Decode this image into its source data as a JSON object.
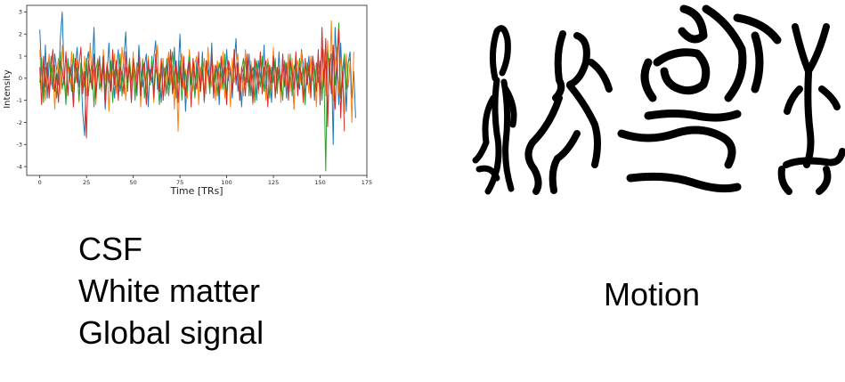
{
  "chart_data": {
    "type": "line",
    "xlabel": "Time [TRs]",
    "ylabel": "Intensity",
    "xlim": [
      -7,
      175
    ],
    "ylim": [
      -4.4,
      3.3
    ],
    "xticks": [
      "0",
      "25",
      "50",
      "75",
      "100",
      "125",
      "150",
      "175"
    ],
    "yticks": [
      "-4",
      "-3",
      "-2",
      "-1",
      "0",
      "1",
      "2",
      "3"
    ],
    "grid": false,
    "legend": "none",
    "series": [
      {
        "color": "#1f77b4",
        "values": [
          2.2,
          0.3,
          -0.6,
          1.5,
          -0.9,
          0.8,
          0.1,
          -0.5,
          1.1,
          0.4,
          -0.3,
          1.8,
          3.0,
          0.2,
          -0.8,
          0.9,
          -0.1,
          0.6,
          -1.2,
          0.5,
          1.4,
          -0.4,
          0.3,
          -1.6,
          -2.6,
          0.7,
          1.2,
          -0.2,
          0.4,
          2.3,
          -0.7,
          0.1,
          1.0,
          -0.5,
          0.6,
          -1.4,
          0.2,
          1.6,
          -0.3,
          0.8,
          -0.9,
          0.4,
          1.3,
          -0.6,
          0.0,
          0.9,
          2.1,
          -0.2,
          0.5,
          -1.0,
          0.7,
          0.2,
          -0.8,
          1.5,
          0.3,
          -0.4,
          0.6,
          1.1,
          -1.3,
          0.4,
          -0.2,
          0.9,
          1.7,
          -0.5,
          0.2,
          -1.1,
          0.6,
          0.3,
          -0.7,
          1.0,
          0.5,
          -0.3,
          1.4,
          -0.9,
          0.2,
          2.0,
          -0.4,
          0.7,
          -1.5,
          0.3,
          1.1,
          -0.2,
          0.5,
          -0.8,
          0.9,
          0.1,
          -0.6,
          1.2,
          -1.0,
          0.4,
          0.8,
          -0.3,
          1.6,
          -0.7,
          0.2,
          0.6,
          -1.2,
          0.9,
          0.3,
          -0.5,
          1.3,
          -0.1,
          0.4,
          -0.9,
          0.7,
          1.8,
          -0.6,
          0.2,
          -1.3,
          0.5,
          0.9,
          -0.2,
          1.1,
          -0.8,
          0.3,
          0.6,
          -1.0,
          0.8,
          0.1,
          -0.4,
          1.5,
          -0.7,
          0.4,
          0.2,
          -1.1,
          0.9,
          0.5,
          -0.3,
          1.2,
          -0.6,
          0.3,
          0.7,
          -0.9,
          1.0,
          -0.2,
          0.4,
          -1.4,
          0.8,
          0.1,
          -0.5,
          1.3,
          0.6,
          -0.8,
          0.2,
          1.0,
          -0.4,
          0.5,
          -1.0,
          0.7,
          0.3,
          -0.6,
          1.4,
          -0.2,
          0.8,
          -1.7,
          0.4,
          1.1,
          -3.0,
          2.3,
          0.5,
          -1.2,
          1.6,
          -0.4,
          0.9,
          -1.5,
          0.7,
          1.2,
          -0.9,
          0.3,
          -1.8
        ]
      },
      {
        "color": "#ff7f0e",
        "values": [
          1.3,
          -0.5,
          0.8,
          -1.0,
          0.4,
          1.1,
          -0.3,
          0.6,
          -1.4,
          0.2,
          0.9,
          -0.7,
          1.5,
          0.1,
          -0.9,
          0.7,
          -0.2,
          1.2,
          -0.6,
          0.3,
          0.8,
          -1.1,
          0.5,
          -0.4,
          1.0,
          -0.8,
          0.2,
          1.6,
          -0.5,
          0.4,
          -1.2,
          0.9,
          0.3,
          -0.6,
          1.3,
          -0.1,
          0.7,
          -1.5,
          0.5,
          0.1,
          1.1,
          -0.7,
          0.4,
          -0.3,
          1.4,
          0.6,
          -1.0,
          0.2,
          0.8,
          -0.4,
          1.2,
          -0.9,
          0.3,
          0.6,
          -1.3,
          0.9,
          0.1,
          -0.5,
          1.0,
          -0.2,
          0.7,
          -1.1,
          0.4,
          1.5,
          -0.6,
          0.2,
          0.9,
          -0.8,
          0.5,
          1.2,
          -0.3,
          0.6,
          -1.4,
          0.8,
          -2.4,
          0.3,
          1.1,
          -0.5,
          0.4,
          -0.9,
          1.3,
          0.2,
          -0.6,
          0.7,
          1.0,
          -1.2,
          0.5,
          -0.1,
          0.9,
          -0.7,
          1.4,
          0.3,
          -0.4,
          0.6,
          -1.0,
          0.8,
          0.2,
          -0.5,
          1.2,
          -0.9,
          0.4,
          0.7,
          -1.3,
          0.9,
          -0.2,
          0.5,
          1.1,
          -0.6,
          0.3,
          -0.8,
          1.3,
          0.1,
          -0.4,
          0.8,
          -1.2,
          0.6,
          0.4,
          -0.7,
          1.0,
          -0.3,
          0.5,
          -1.0,
          0.9,
          0.2,
          -0.5,
          1.4,
          -0.8,
          0.3,
          0.6,
          -1.1,
          0.7,
          0.1,
          -0.4,
          1.1,
          -0.6,
          0.9,
          -1.4,
          0.4,
          0.8,
          -0.2,
          1.2,
          -0.9,
          0.5,
          0.3,
          -0.7,
          1.0,
          -0.1,
          0.6,
          -1.3,
          0.8,
          0.2,
          -0.5,
          1.3,
          -0.8,
          1.7,
          -0.3,
          2.6,
          -1.0,
          0.6,
          1.4,
          -0.7,
          0.9,
          0.2,
          -1.6,
          1.1,
          -0.4,
          0.7,
          -2.0,
          1.2
        ]
      },
      {
        "color": "#2ca02c",
        "values": [
          -0.2,
          0.9,
          -1.1,
          0.5,
          0.2,
          -0.7,
          1.0,
          -0.3,
          0.6,
          -0.9,
          0.4,
          1.2,
          -0.5,
          0.1,
          -1.2,
          0.8,
          0.3,
          -0.6,
          1.1,
          -0.2,
          0.5,
          -1.0,
          0.7,
          0.2,
          -0.4,
          0.9,
          -0.8,
          0.3,
          0.6,
          -1.3,
          0.4,
          0.8,
          -0.5,
          0.1,
          1.0,
          -0.7,
          0.5,
          -0.2,
          0.8,
          -1.1,
          0.3,
          0.6,
          -0.4,
          1.1,
          -0.8,
          0.2,
          0.5,
          -0.6,
          0.9,
          -0.1,
          0.4,
          -1.0,
          0.7,
          0.3,
          -0.5,
          0.8,
          -0.9,
          0.2,
          0.6,
          -0.3,
          1.0,
          -0.7,
          0.4,
          0.1,
          -1.2,
          0.7,
          0.5,
          -0.4,
          0.9,
          -0.8,
          0.3,
          1.2,
          -0.5,
          0.6,
          -0.2,
          0.8,
          -1.0,
          0.4,
          0.2,
          -0.6,
          1.0,
          -0.3,
          0.7,
          -0.9,
          0.5,
          0.1,
          -0.4,
          0.9,
          -1.1,
          0.6,
          0.3,
          -0.7,
          1.0,
          -0.2,
          0.4,
          -0.8,
          0.7,
          0.2,
          -0.5,
          1.1,
          -0.9,
          0.5,
          0.3,
          -0.6,
          0.8,
          -0.1,
          0.6,
          -1.0,
          0.4,
          0.9,
          -0.3,
          0.7,
          -0.8,
          0.2,
          0.5,
          -1.1,
          0.8,
          0.1,
          -0.4,
          1.0,
          -0.6,
          0.3,
          0.7,
          -0.9,
          0.5,
          -0.2,
          0.9,
          -0.7,
          0.4,
          0.1,
          -1.0,
          0.8,
          0.3,
          -0.5,
          1.1,
          -0.8,
          0.6,
          0.2,
          -0.6,
          0.9,
          -0.3,
          0.5,
          -1.2,
          0.7,
          0.1,
          -0.4,
          1.0,
          -0.7,
          0.6,
          -0.2,
          0.8,
          -1.0,
          0.4,
          -4.2,
          1.2,
          0.5,
          -0.6,
          1.5,
          -0.3,
          0.8,
          2.5,
          -0.9,
          0.4,
          1.1,
          -0.5,
          0.7,
          0.9
        ]
      },
      {
        "color": "#d62728",
        "values": [
          0.5,
          -1.2,
          1.0,
          -0.4,
          0.7,
          -0.9,
          0.3,
          1.3,
          -0.6,
          0.2,
          -1.1,
          0.8,
          0.4,
          -0.3,
          1.2,
          -0.8,
          0.5,
          0.1,
          -1.3,
          0.9,
          -0.2,
          0.6,
          1.4,
          -0.7,
          0.3,
          -2.7,
          0.8,
          0.2,
          -0.5,
          1.1,
          -0.9,
          0.4,
          0.7,
          -0.4,
          1.0,
          -1.2,
          0.6,
          0.1,
          -0.6,
          1.3,
          -0.3,
          0.8,
          -1.0,
          0.5,
          0.2,
          -0.7,
          1.2,
          -0.2,
          0.6,
          -1.1,
          0.9,
          0.3,
          -0.5,
          1.0,
          -0.8,
          0.4,
          0.7,
          -1.2,
          0.8,
          -0.1,
          0.5,
          -0.9,
          1.1,
          0.2,
          -0.6,
          0.9,
          -1.0,
          0.4,
          0.6,
          -0.3,
          1.3,
          -0.7,
          0.2,
          0.8,
          -1.1,
          0.5,
          -0.4,
          1.0,
          -0.8,
          0.3,
          0.7,
          -1.3,
          0.9,
          0.1,
          -0.5,
          1.2,
          -0.6,
          0.4,
          -1.0,
          0.8,
          0.2,
          -0.4,
          1.1,
          -0.9,
          0.6,
          0.3,
          -0.7,
          1.0,
          -0.2,
          0.5,
          -1.2,
          0.8,
          0.4,
          -0.6,
          1.3,
          -0.3,
          0.7,
          -1.0,
          0.5,
          0.2,
          -0.8,
          1.1,
          -0.4,
          0.6,
          -1.1,
          0.9,
          0.3,
          -0.5,
          1.2,
          -0.7,
          0.4,
          0.8,
          -1.3,
          0.6,
          -0.2,
          1.0,
          -0.9,
          0.5,
          0.1,
          -0.6,
          1.1,
          -0.4,
          0.7,
          -1.0,
          0.8,
          0.3,
          -0.5,
          1.2,
          -0.8,
          0.5,
          0.2,
          -1.1,
          0.9,
          -0.3,
          0.6,
          -0.9,
          1.0,
          0.4,
          -0.6,
          1.3,
          -1.2,
          2.3,
          -0.4,
          1.8,
          -2.2,
          0.9,
          -0.7,
          1.5,
          -1.4,
          0.6,
          2.2,
          -1.8,
          0.3,
          -2.4
        ]
      }
    ]
  },
  "labels": {
    "line1": "CSF",
    "line2": "White matter",
    "line3": "Global signal",
    "motion": "Motion"
  },
  "figures_icon": "dancing-figures-icon"
}
